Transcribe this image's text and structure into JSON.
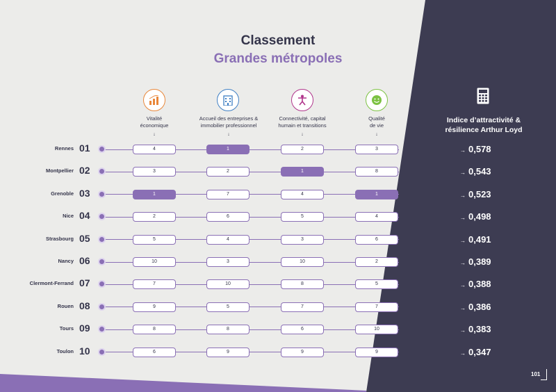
{
  "title": "Classement",
  "subtitle": "Grandes métropoles",
  "colors": {
    "accent": "#8a6fb5",
    "dark": "#3d3c52",
    "text": "#34344a",
    "orange": "#e9873a",
    "blue": "#3f7fc4",
    "magenta": "#b0348b",
    "green": "#7cc242"
  },
  "columns": [
    {
      "line1": "Vitalité",
      "line2": "économique",
      "icon": "bar-chart-icon",
      "arrow": "↓"
    },
    {
      "line1": "Accueil des entreprises &",
      "line2": "immobilier professionnel",
      "icon": "building-icon",
      "arrow": "↓"
    },
    {
      "line1": "Connectivité, capital",
      "line2": "humain et transitions",
      "icon": "person-icon",
      "arrow": "↓"
    },
    {
      "line1": "Qualité",
      "line2": "de vie",
      "icon": "smiley-icon",
      "arrow": "↓"
    }
  ],
  "indice": {
    "line1": "Indice d’attractivité &",
    "line2": "résilience Arthur Loyd",
    "icon": "calculator-icon"
  },
  "rows": [
    {
      "city": "Rennes",
      "rank": "01",
      "values": [
        "4",
        "1",
        "2",
        "3"
      ],
      "score": "0,578"
    },
    {
      "city": "Montpellier",
      "rank": "02",
      "values": [
        "3",
        "2",
        "1",
        "8"
      ],
      "score": "0,543"
    },
    {
      "city": "Grenoble",
      "rank": "03",
      "values": [
        "1",
        "7",
        "4",
        "1"
      ],
      "score": "0,523"
    },
    {
      "city": "Nice",
      "rank": "04",
      "values": [
        "2",
        "6",
        "5",
        "4"
      ],
      "score": "0,498"
    },
    {
      "city": "Strasbourg",
      "rank": "05",
      "values": [
        "5",
        "4",
        "3",
        "6"
      ],
      "score": "0,491"
    },
    {
      "city": "Nancy",
      "rank": "06",
      "values": [
        "10",
        "3",
        "10",
        "2"
      ],
      "score": "0,389"
    },
    {
      "city": "Clermont-Ferrand",
      "rank": "07",
      "values": [
        "7",
        "10",
        "8",
        "5"
      ],
      "score": "0,388"
    },
    {
      "city": "Rouen",
      "rank": "08",
      "values": [
        "9",
        "5",
        "7",
        "7"
      ],
      "score": "0,386"
    },
    {
      "city": "Tours",
      "rank": "09",
      "values": [
        "8",
        "8",
        "6",
        "10"
      ],
      "score": "0,383"
    },
    {
      "city": "Toulon",
      "rank": "10",
      "values": [
        "6",
        "9",
        "9",
        "9"
      ],
      "score": "0,347"
    }
  ],
  "score_arrow": "→",
  "page_number": "101"
}
